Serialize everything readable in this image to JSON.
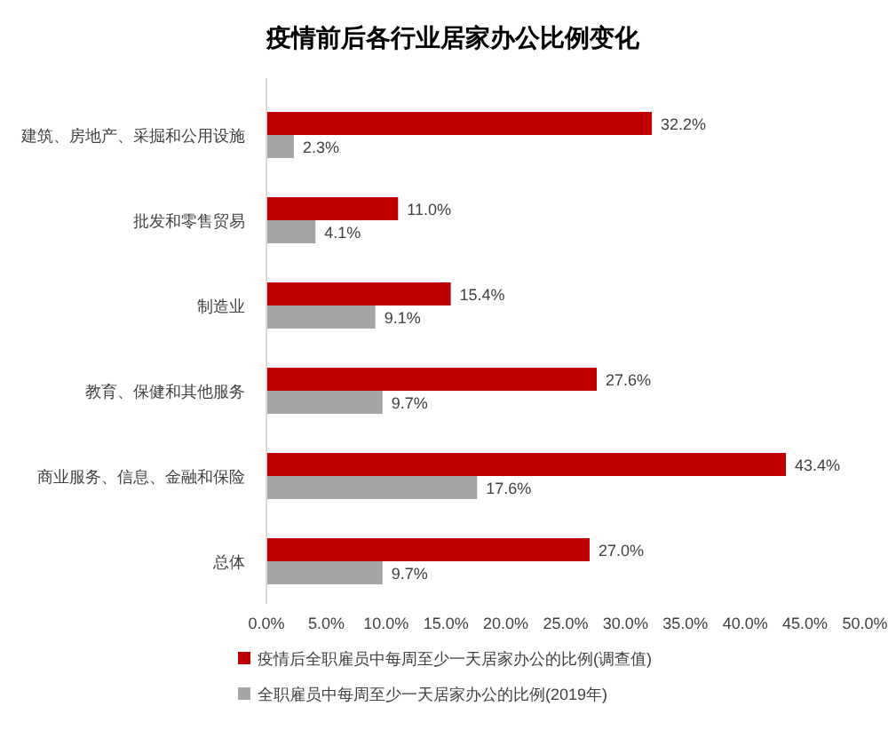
{
  "chart_data": {
    "type": "bar",
    "orientation": "horizontal",
    "title": "疫情前后各行业居家办公比例变化",
    "categories": [
      "建筑、房地产、采掘和公用设施",
      "批发和零售贸易",
      "制造业",
      "教育、保健和其他服务",
      "商业服务、信息、金融和保险",
      "总体"
    ],
    "series": [
      {
        "name": "疫情后全职雇员中每周至少一天居家办公的比例(调查值)",
        "color": "#c00000",
        "values": [
          32.2,
          11.0,
          15.4,
          27.6,
          43.4,
          27.0
        ],
        "value_labels": [
          "32.2%",
          "11.0%",
          "15.4%",
          "27.6%",
          "43.4%",
          "27.0%"
        ]
      },
      {
        "name": "全职雇员中每周至少一天居家办公的比例(2019年)",
        "color": "#a5a5a5",
        "values": [
          2.3,
          4.1,
          9.1,
          9.7,
          17.6,
          9.7
        ],
        "value_labels": [
          "2.3%",
          "4.1%",
          "9.1%",
          "9.7%",
          "17.6%",
          "9.7%"
        ]
      }
    ],
    "xlim": [
      0,
      50
    ],
    "xticks": [
      {
        "value": 0,
        "label": "0.0%"
      },
      {
        "value": 5,
        "label": "5.0%"
      },
      {
        "value": 10,
        "label": "10.0%"
      },
      {
        "value": 15,
        "label": "15.0%"
      },
      {
        "value": 20,
        "label": "20.0%"
      },
      {
        "value": 25,
        "label": "25.0%"
      },
      {
        "value": 30,
        "label": "30.0%"
      },
      {
        "value": 35,
        "label": "35.0%"
      },
      {
        "value": 40,
        "label": "40.0%"
      },
      {
        "value": 45,
        "label": "45.0%"
      },
      {
        "value": 50,
        "label": "50.0%"
      }
    ],
    "grid": false,
    "legend": "bottom"
  }
}
